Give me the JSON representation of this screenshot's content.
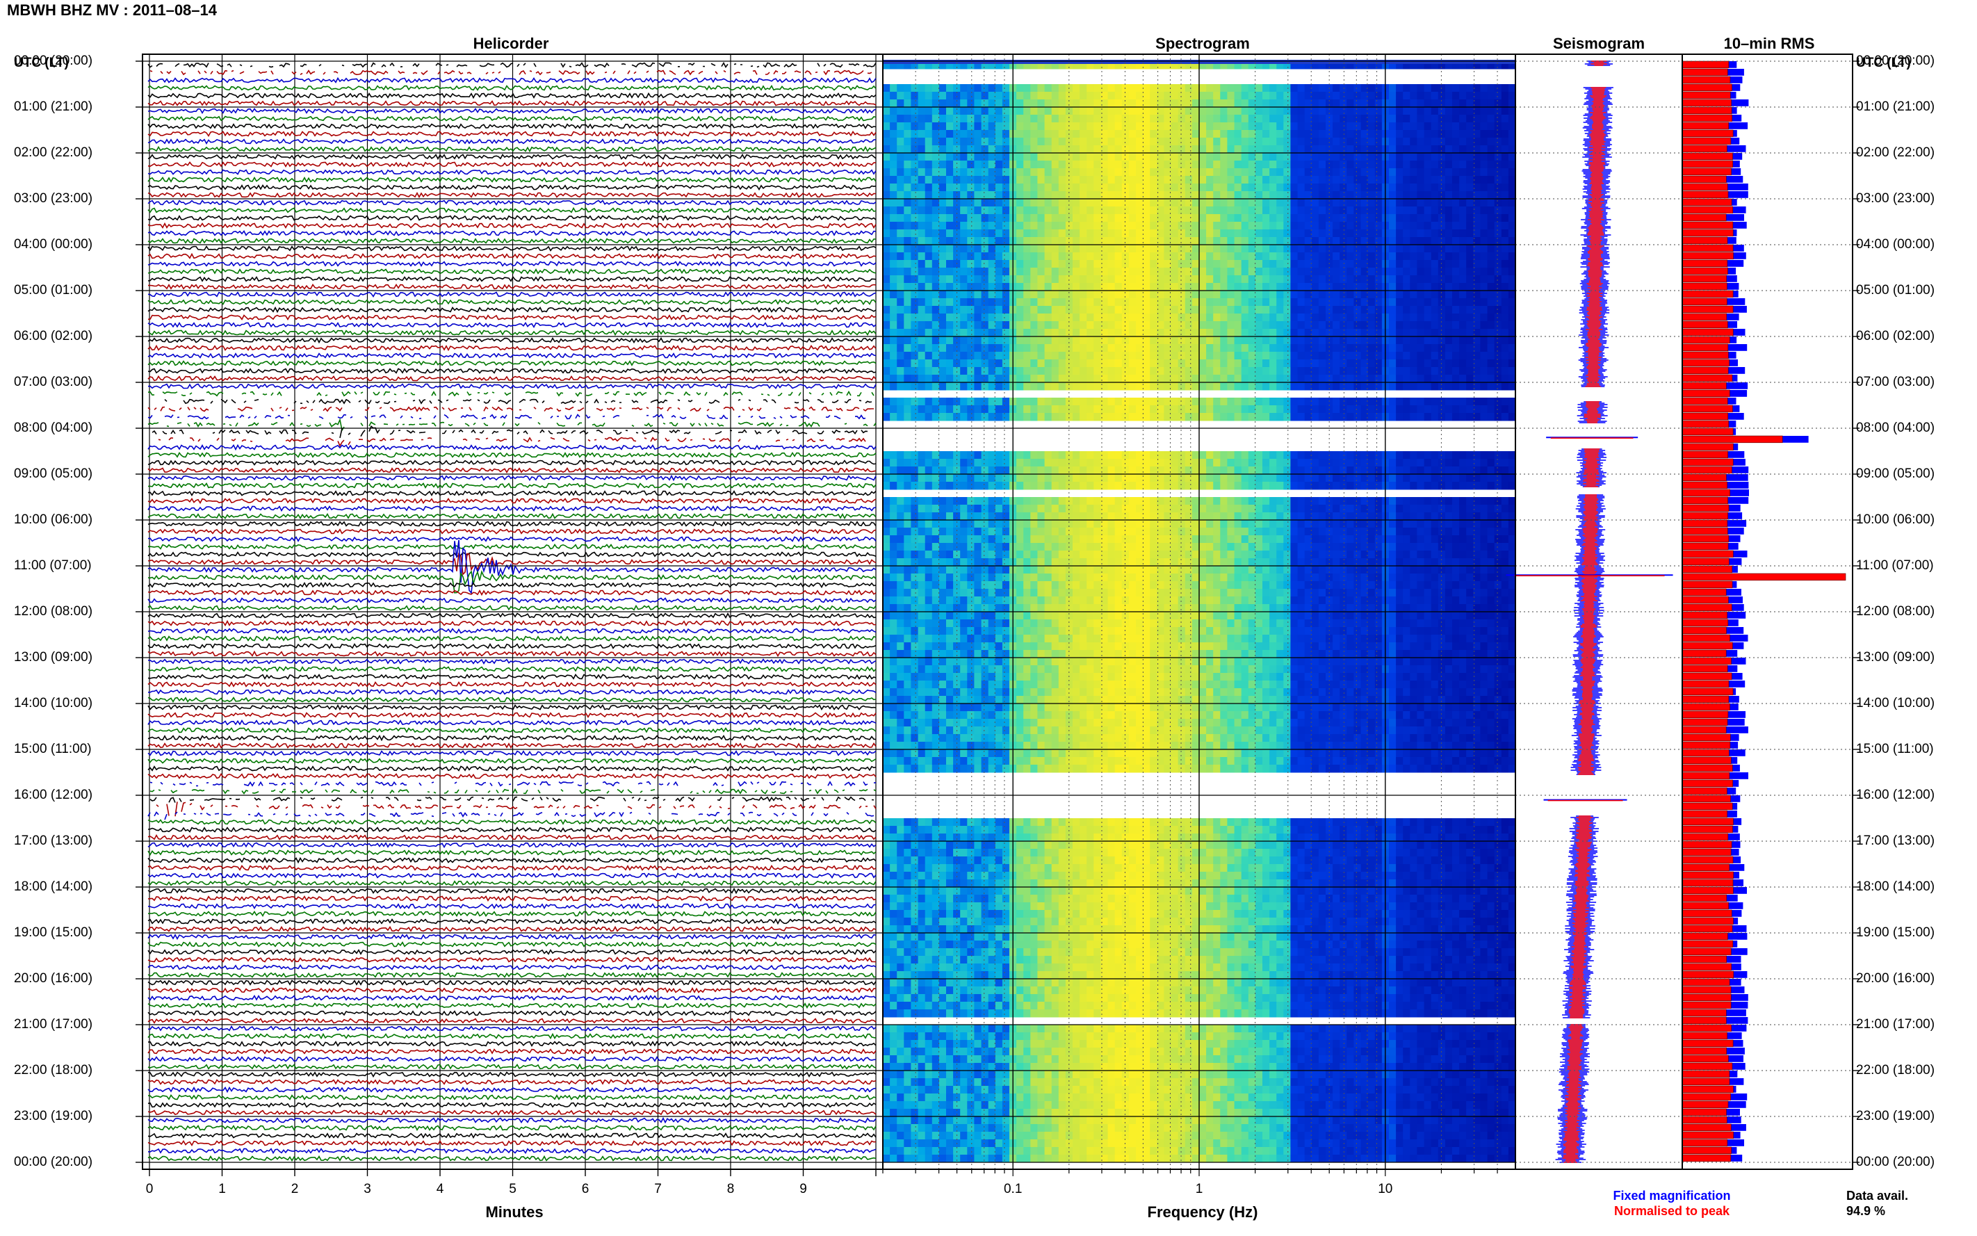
{
  "title": "MBWH BHZ MV : 2011–08–14",
  "panels": {
    "helicorder": "Helicorder",
    "spectrogram": "Spectrogram",
    "seismogram": "Seismogram",
    "rms": "10–min RMS"
  },
  "axes": {
    "left_header": "UTC (LT)",
    "right_header": "UTC (LT)",
    "helicorder_xlabel": "Minutes",
    "spectrogram_xlabel": "Frequency (Hz)"
  },
  "legend": {
    "fixed": "Fixed magnification",
    "normalised": "Normalised to peak"
  },
  "availability": {
    "label": "Data avail.",
    "value": "94.9 %"
  },
  "colors": {
    "trace_cycle": [
      "#000000",
      "#aa0000",
      "#0000cc",
      "#007700"
    ],
    "fixed": "#0000ff",
    "normalised": "#ff0000"
  },
  "chart_data": [
    {
      "type": "line",
      "name": "helicorder",
      "xlabel": "Minutes",
      "x_ticks": [
        "0",
        "1",
        "2",
        "3",
        "4",
        "5",
        "6",
        "7",
        "8",
        "9"
      ],
      "xlim": [
        0,
        10
      ],
      "rows_per_hour": 6,
      "hours": 24,
      "y_ticks_left": [
        "00:00 (20:00)",
        "01:00 (21:00)",
        "02:00 (22:00)",
        "03:00 (23:00)",
        "04:00 (00:00)",
        "05:00 (01:00)",
        "06:00 (02:00)",
        "07:00 (03:00)",
        "08:00 (04:00)",
        "09:00 (05:00)",
        "10:00 (06:00)",
        "11:00 (07:00)",
        "12:00 (08:00)",
        "13:00 (09:00)",
        "14:00 (10:00)",
        "15:00 (11:00)",
        "16:00 (12:00)",
        "17:00 (13:00)",
        "18:00 (14:00)",
        "19:00 (15:00)",
        "20:00 (16:00)",
        "21:00 (17:00)",
        "22:00 (18:00)",
        "23:00 (19:00)",
        "00:00 (20:00)"
      ],
      "events": [
        {
          "hour": 8.0,
          "minute": 2.6,
          "amplitude": 2.2
        },
        {
          "hour": 11.0,
          "minute": 4.2,
          "amplitude": 5.0
        },
        {
          "hour": 16.1,
          "minute": 0.2,
          "amplitude": 1.8
        }
      ],
      "grid": true
    },
    {
      "type": "heatmap",
      "name": "spectrogram",
      "xlabel": "Frequency (Hz)",
      "x_scale": "log",
      "xlim": [
        0.02,
        50
      ],
      "x_ticks": [
        "0.1",
        "1",
        "10"
      ],
      "gaps_hours": [
        [
          0.1,
          0.55
        ],
        [
          7.1,
          7.4
        ],
        [
          7.9,
          8.45
        ],
        [
          9.3,
          9.45
        ],
        [
          15.55,
          16.45
        ],
        [
          20.85,
          21.0
        ]
      ],
      "grid": true
    },
    {
      "type": "line",
      "name": "seismogram",
      "series": [
        {
          "name": "Fixed magnification"
        },
        {
          "name": "Normalised to peak"
        }
      ],
      "spikes": [
        {
          "hour": 8.2,
          "width": 0.55
        },
        {
          "hour": 11.2,
          "width": 1.0
        },
        {
          "hour": 16.1,
          "width": 0.5
        }
      ]
    },
    {
      "type": "bar",
      "name": "10-min RMS",
      "orientation": "horizontal",
      "series": [
        {
          "name": "Fixed magnification"
        },
        {
          "name": "Normalised to peak"
        }
      ],
      "spikes": [
        {
          "hour": 8.1,
          "fixed": 1.7,
          "normalised": 1.35
        },
        {
          "hour": 11.1,
          "fixed": 2.2,
          "normalised": 2.2
        }
      ],
      "typical": 0.72
    }
  ]
}
